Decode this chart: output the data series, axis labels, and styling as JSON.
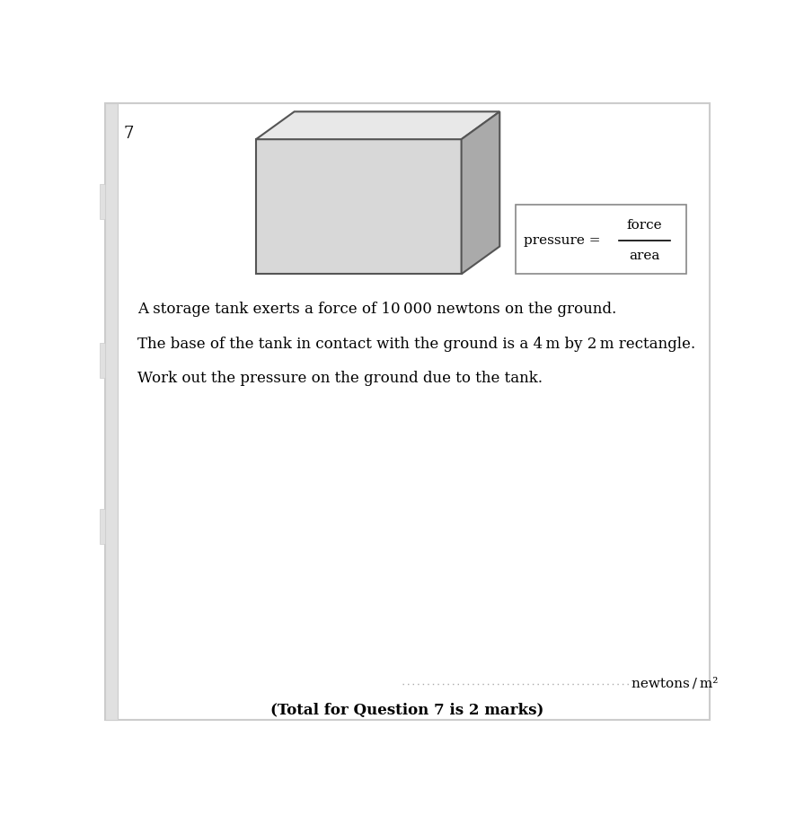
{
  "question_number": "7",
  "page_bg": "#ffffff",
  "line1": "A storage tank exerts a force of 10 000 newtons on the ground.",
  "line2": "The base of the tank in contact with the ground is a 4 m by 2 m rectangle.",
  "line3": "Work out the pressure on the ground due to the tank.",
  "answer_unit": "newtons / m²",
  "total_marks": "(Total for Question 7 is 2 marks)",
  "box_face_color": "#d8d8d8",
  "box_side_color": "#aaaaaa",
  "box_top_color": "#e8e8e8",
  "box_edge_color": "#555555",
  "border_color": "#cccccc",
  "strip_color": "#e0e0e0"
}
